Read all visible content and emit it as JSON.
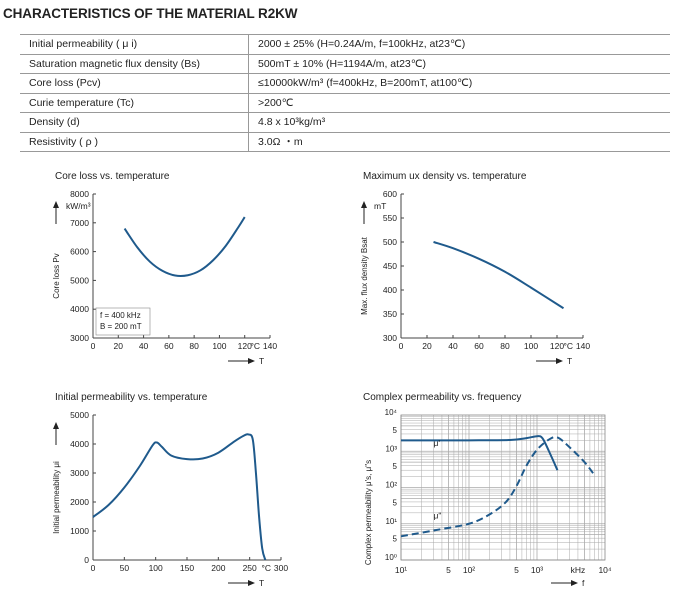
{
  "title": "CHARACTERISTICS OF THE MATERIAL R2KW",
  "table": [
    {
      "property": "Initial permeability ( μ i)",
      "value": "2000 ± 25% (H=0.24A/m, f=100kHz, at23℃)"
    },
    {
      "property": "Saturation magnetic flux density (Bs)",
      "value": "500mT ± 10% (H=1194A/m, at23℃)"
    },
    {
      "property": "Core loss (Pcv)",
      "value": "≤10000kW/m³ (f=400kHz, B=200mT, at100℃)"
    },
    {
      "property": "Curie temperature (Tc)",
      "value": ">200℃"
    },
    {
      "property": "Density (d)",
      "value": "4.8 x 10³kg/m³"
    },
    {
      "property": "Resistivity ( ρ )",
      "value": "3.0Ω ・m"
    }
  ],
  "chart_data": [
    {
      "type": "line",
      "title": "Core loss vs. temperature",
      "ylabel": "Core loss Pv",
      "yunit": "kW/m³",
      "xlabel": "T",
      "xunit": "°C",
      "xlim": [
        0,
        140
      ],
      "ylim": [
        3000,
        8000
      ],
      "xticks": [
        0,
        20,
        40,
        60,
        80,
        100,
        120,
        140
      ],
      "yticks": [
        3000,
        4000,
        5000,
        6000,
        7000,
        8000
      ],
      "annotations": [
        "f = 400 kHz",
        "B = 200 mT"
      ],
      "series": [
        {
          "name": "Pv",
          "x": [
            25,
            35,
            45,
            55,
            65,
            75,
            85,
            95,
            105,
            115,
            120
          ],
          "y": [
            6800,
            6150,
            5650,
            5330,
            5170,
            5180,
            5350,
            5700,
            6200,
            6850,
            7200
          ]
        }
      ]
    },
    {
      "type": "line",
      "title": "Maximum ux density vs. temperature",
      "ylabel": "Max. flux density Bsat",
      "yunit": "mT",
      "xlabel": "T",
      "xunit": "°C",
      "xlim": [
        0,
        140
      ],
      "ylim": [
        300,
        600
      ],
      "xticks": [
        0,
        20,
        40,
        60,
        80,
        100,
        120,
        140
      ],
      "yticks": [
        300,
        350,
        400,
        450,
        500,
        550,
        600
      ],
      "series": [
        {
          "name": "Bsat",
          "x": [
            25,
            40,
            60,
            80,
            100,
            125
          ],
          "y": [
            500,
            487,
            465,
            438,
            405,
            362
          ]
        }
      ]
    },
    {
      "type": "line",
      "title": "Initial permeability vs. temperature",
      "ylabel": "Initial permeability μi",
      "xlabel": "T",
      "xunit": "°C",
      "xlim": [
        0,
        300
      ],
      "ylim": [
        0,
        5000
      ],
      "xticks": [
        0,
        50,
        100,
        150,
        200,
        250,
        300
      ],
      "yticks": [
        0,
        1000,
        2000,
        3000,
        4000,
        5000
      ],
      "series": [
        {
          "name": "μi",
          "x": [
            0,
            25,
            50,
            75,
            95,
            102,
            110,
            125,
            150,
            175,
            200,
            225,
            240,
            248,
            255,
            260,
            265,
            270,
            275
          ],
          "y": [
            1480,
            1900,
            2500,
            3250,
            3950,
            4050,
            3900,
            3600,
            3480,
            3500,
            3700,
            4080,
            4280,
            4330,
            4150,
            3000,
            1500,
            400,
            0
          ]
        }
      ]
    },
    {
      "type": "line",
      "scale": "log",
      "title": "Complex permeability vs. frequency",
      "ylabel": "Complex permeability μ's, μ\"s",
      "xlabel": "f",
      "xunit": "kHz",
      "xlim": [
        10,
        10000
      ],
      "ylim": [
        1,
        10000
      ],
      "xticks": [
        "10¹",
        "5",
        "10²",
        "5",
        "10³",
        "kHz",
        "10⁴"
      ],
      "yticks": [
        "10⁰",
        "5",
        "10¹",
        "5",
        "10²",
        "5",
        "10³",
        "5",
        "10⁴"
      ],
      "series": [
        {
          "name": "μ'",
          "dash": false,
          "x": [
            10,
            100,
            400,
            700,
            1000,
            1200,
            1500,
            2000
          ],
          "y": [
            2000,
            2000,
            2050,
            2300,
            2600,
            2300,
            1000,
            300
          ]
        },
        {
          "name": "μ\"",
          "dash": true,
          "x": [
            10,
            30,
            100,
            200,
            350,
            500,
            700,
            1000,
            1500,
            2000,
            3000,
            5000,
            7000
          ],
          "y": [
            4.5,
            6.5,
            10,
            18,
            40,
            110,
            400,
            1100,
            2100,
            2400,
            1300,
            500,
            220
          ]
        }
      ]
    }
  ]
}
